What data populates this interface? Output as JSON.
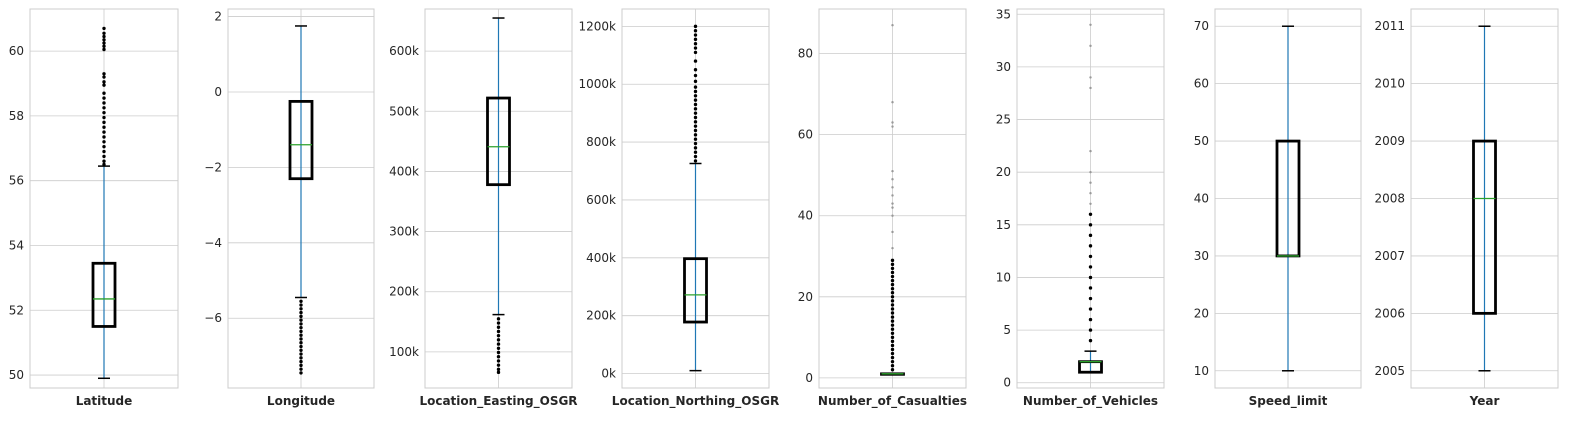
{
  "colors": {
    "whisker": "#1f77b4",
    "box": "#000000",
    "median": "#2ca02c",
    "grid": "#cccccc",
    "frame": "#cccccc",
    "background": "#ffffff",
    "text": "#262626"
  },
  "chart_data": [
    {
      "type": "box",
      "xlabel": "Latitude",
      "ylim": [
        49.6,
        61.3
      ],
      "yticks": [
        50,
        52,
        54,
        56,
        58,
        60
      ],
      "ytick_labels": [
        "50",
        "52",
        "54",
        "56",
        "58",
        "60"
      ],
      "box": {
        "whisker_low": 49.9,
        "q1": 51.5,
        "median": 52.35,
        "q3": 53.45,
        "whisker_high": 56.45
      },
      "outliers": [
        56.5,
        56.6,
        56.75,
        56.9,
        57.05,
        57.2,
        57.35,
        57.5,
        57.65,
        57.8,
        57.95,
        58.1,
        58.25,
        58.4,
        58.55,
        58.7,
        58.95,
        59.05,
        59.2,
        59.3,
        60.05,
        60.15,
        60.25,
        60.35,
        60.45,
        60.55,
        60.7
      ]
    },
    {
      "type": "box",
      "xlabel": "Longitude",
      "ylim": [
        -7.85,
        2.2
      ],
      "yticks": [
        -6,
        -4,
        -2,
        0,
        2
      ],
      "ytick_labels": [
        "−6",
        "−4",
        "−2",
        "0",
        "2"
      ],
      "box": {
        "whisker_low": -5.45,
        "q1": -2.3,
        "median": -1.4,
        "q3": -0.25,
        "whisker_high": 1.75
      },
      "outliers": [
        -5.55,
        -5.65,
        -5.75,
        -5.85,
        -5.95,
        -6.05,
        -6.15,
        -6.25,
        -6.35,
        -6.45,
        -6.55,
        -6.65,
        -6.75,
        -6.85,
        -6.95,
        -7.05,
        -7.15,
        -7.25,
        -7.35,
        -7.45
      ]
    },
    {
      "type": "box",
      "xlabel": "Location_Easting_OSGR",
      "ylim": [
        40000,
        670000
      ],
      "yticks": [
        100000,
        200000,
        300000,
        400000,
        500000,
        600000
      ],
      "ytick_labels": [
        "100k",
        "200k",
        "300k",
        "400k",
        "500k",
        "600k"
      ],
      "box": {
        "whisker_low": 162000,
        "q1": 378000,
        "median": 441000,
        "q3": 522000,
        "whisker_high": 655000
      },
      "outliers": [
        155000,
        148000,
        141000,
        134000,
        127000,
        120000,
        113000,
        106000,
        99000,
        92000,
        85000,
        78000,
        71000,
        66000
      ]
    },
    {
      "type": "box",
      "xlabel": "Location_Northing_OSGR",
      "ylim": [
        -50000,
        1260000
      ],
      "yticks": [
        0,
        200000,
        400000,
        600000,
        800000,
        1000000,
        1200000
      ],
      "ytick_labels": [
        "0k",
        "200k",
        "400k",
        "600k",
        "800k",
        "1000k",
        "1200k"
      ],
      "box": {
        "whisker_low": 10000,
        "q1": 178000,
        "median": 272000,
        "q3": 397000,
        "whisker_high": 726000
      },
      "outliers": [
        735000,
        750000,
        765000,
        780000,
        795000,
        810000,
        825000,
        840000,
        855000,
        870000,
        885000,
        900000,
        915000,
        930000,
        945000,
        960000,
        975000,
        990000,
        1010000,
        1030000,
        1050000,
        1080000,
        1110000,
        1125000,
        1140000,
        1155000,
        1170000,
        1185000,
        1200000
      ]
    },
    {
      "type": "box",
      "xlabel": "Number_of_Casualties",
      "ylim": [
        -2.5,
        91
      ],
      "yticks": [
        0,
        20,
        40,
        60,
        80
      ],
      "ytick_labels": [
        "0",
        "20",
        "40",
        "60",
        "80"
      ],
      "box": {
        "whisker_low": 1,
        "q1": 1,
        "median": 1,
        "q3": 1,
        "whisker_high": 1
      },
      "outliers": [
        2,
        3,
        4,
        5,
        6,
        7,
        8,
        9,
        10,
        11,
        12,
        13,
        14,
        15,
        16,
        17,
        18,
        19,
        20,
        21,
        22,
        23,
        24,
        25,
        26,
        27,
        28,
        29,
        32,
        36,
        40,
        42,
        43,
        45,
        47,
        49,
        51,
        62,
        63,
        68,
        87
      ]
    },
    {
      "type": "box",
      "xlabel": "Number_of_Vehicles",
      "ylim": [
        -0.5,
        35.5
      ],
      "yticks": [
        0,
        5,
        10,
        15,
        20,
        25,
        30,
        35
      ],
      "ytick_labels": [
        "0",
        "5",
        "10",
        "15",
        "20",
        "25",
        "30",
        "35"
      ],
      "box": {
        "whisker_low": 1,
        "q1": 1,
        "median": 2,
        "q3": 2,
        "whisker_high": 3
      },
      "outliers": [
        4,
        5,
        6,
        7,
        8,
        9,
        10,
        11,
        12,
        13,
        14,
        15,
        16,
        17,
        18,
        19,
        20,
        22,
        28,
        29,
        32,
        34
      ]
    },
    {
      "type": "box",
      "xlabel": "Speed_limit",
      "ylim": [
        7,
        73
      ],
      "yticks": [
        10,
        20,
        30,
        40,
        50,
        60,
        70
      ],
      "ytick_labels": [
        "10",
        "20",
        "30",
        "40",
        "50",
        "60",
        "70"
      ],
      "box": {
        "whisker_low": 10,
        "q1": 30,
        "median": 30,
        "q3": 50,
        "whisker_high": 70
      },
      "outliers": []
    },
    {
      "type": "box",
      "xlabel": "Year",
      "ylim": [
        2004.7,
        2011.3
      ],
      "yticks": [
        2005,
        2006,
        2007,
        2008,
        2009,
        2010,
        2011
      ],
      "ytick_labels": [
        "2005",
        "2006",
        "2007",
        "2008",
        "2009",
        "2010",
        "2011"
      ],
      "box": {
        "whisker_low": 2005,
        "q1": 2006,
        "median": 2008,
        "q3": 2009,
        "whisker_high": 2011
      },
      "outliers": []
    }
  ]
}
